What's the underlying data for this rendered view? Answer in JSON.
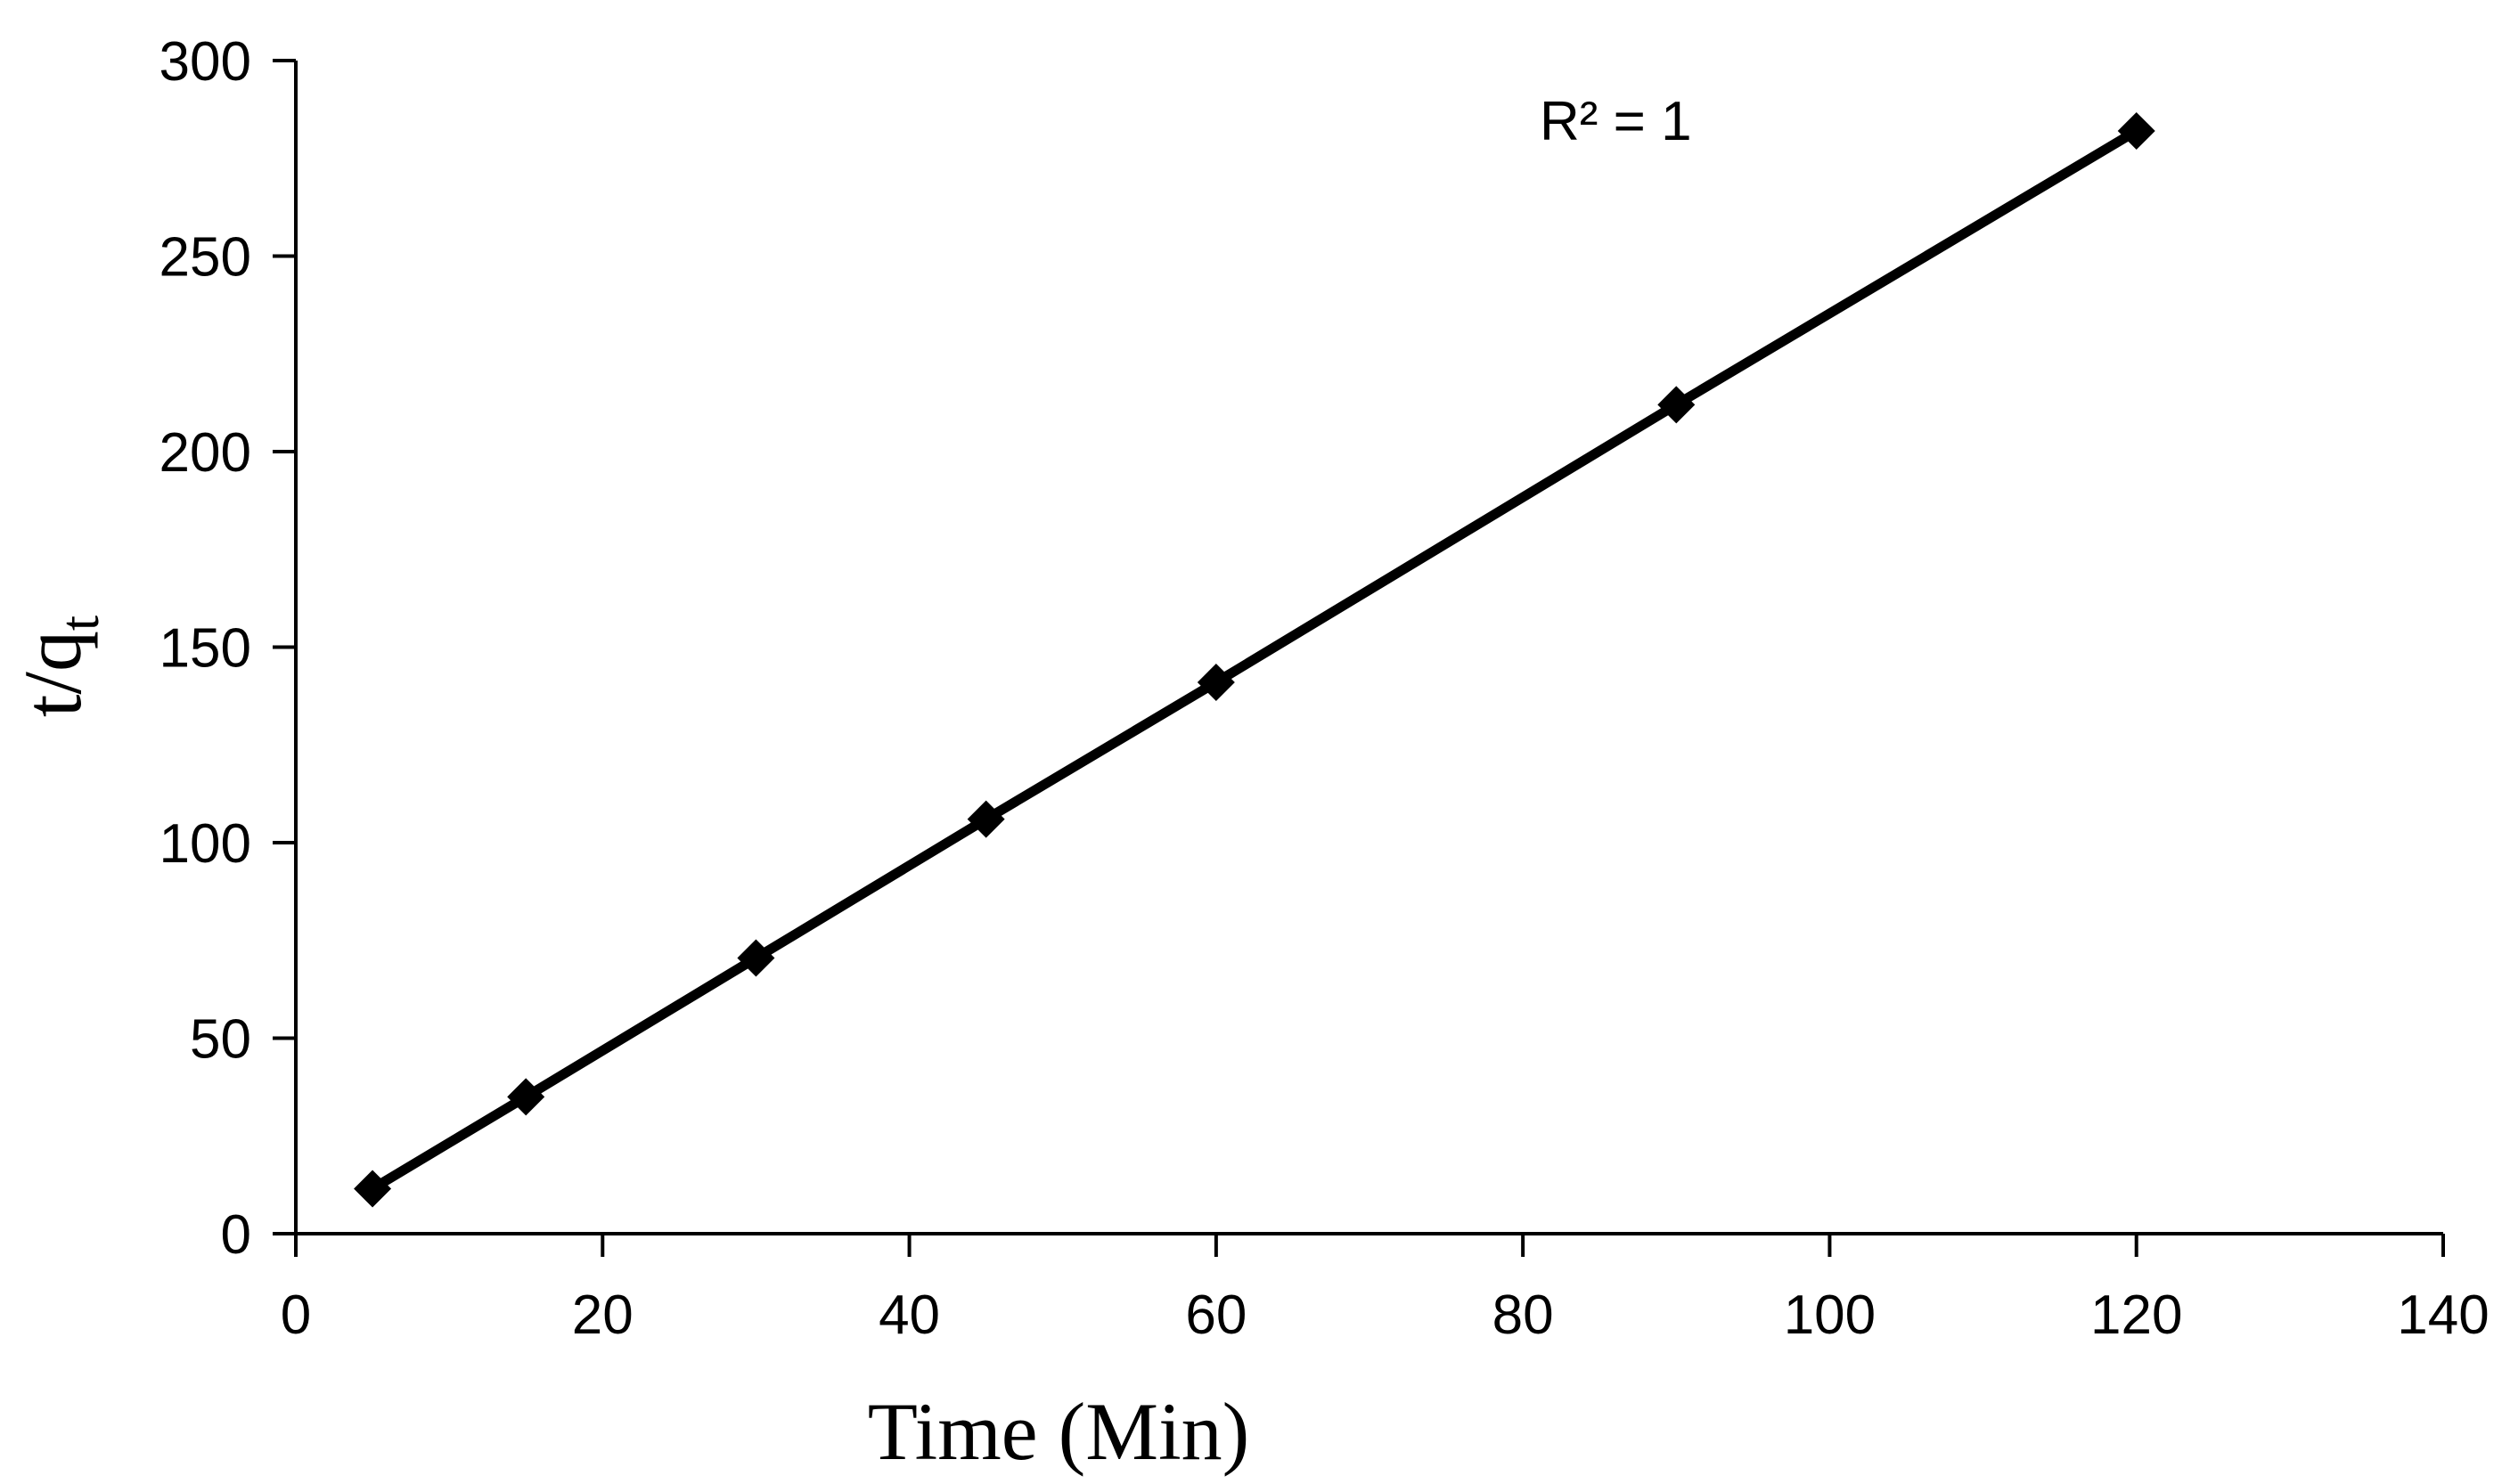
{
  "chart_data": {
    "type": "line",
    "title": "",
    "xlabel": "Time (Min)",
    "ylabel_main": "t/q",
    "ylabel_sub": "t",
    "xlim": [
      0,
      140
    ],
    "ylim": [
      0,
      300
    ],
    "xticks": [
      0,
      20,
      40,
      60,
      80,
      100,
      120,
      140
    ],
    "yticks": [
      0,
      50,
      100,
      150,
      200,
      250,
      300
    ],
    "grid": false,
    "legend": "none",
    "marker": "diamond",
    "color": "#000000",
    "annotation": "R² = 1",
    "series": [
      {
        "x": [
          5,
          15,
          30,
          45,
          60,
          90,
          120
        ],
        "y": [
          11.5,
          35,
          70.5,
          106,
          141,
          212,
          282
        ]
      }
    ]
  }
}
